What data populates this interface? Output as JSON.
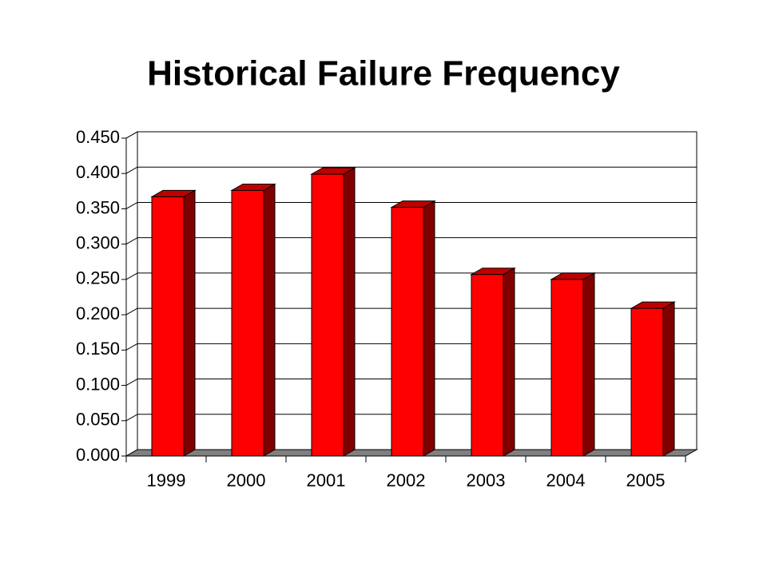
{
  "chart_data": {
    "type": "bar3d",
    "title": "Historical Failure Frequency",
    "categories": [
      "1999",
      "2000",
      "2001",
      "2002",
      "2003",
      "2004",
      "2005"
    ],
    "values": [
      0.367,
      0.376,
      0.399,
      0.352,
      0.257,
      0.25,
      0.209
    ],
    "color": "#ff0000",
    "ylim": [
      0,
      0.45
    ],
    "yticks": [
      {
        "value": 0,
        "label": "0.000"
      },
      {
        "value": 0.05,
        "label": "0.050"
      },
      {
        "value": 0.1,
        "label": "0.100"
      },
      {
        "value": 0.15,
        "label": "0.150"
      },
      {
        "value": 0.2,
        "label": "0.200"
      },
      {
        "value": 0.25,
        "label": "0.250"
      },
      {
        "value": 0.3,
        "label": "0.300"
      },
      {
        "value": 0.35,
        "label": "0.350"
      },
      {
        "value": 0.4,
        "label": "0.400"
      },
      {
        "value": 0.45,
        "label": "0.450"
      }
    ],
    "grid": true
  }
}
